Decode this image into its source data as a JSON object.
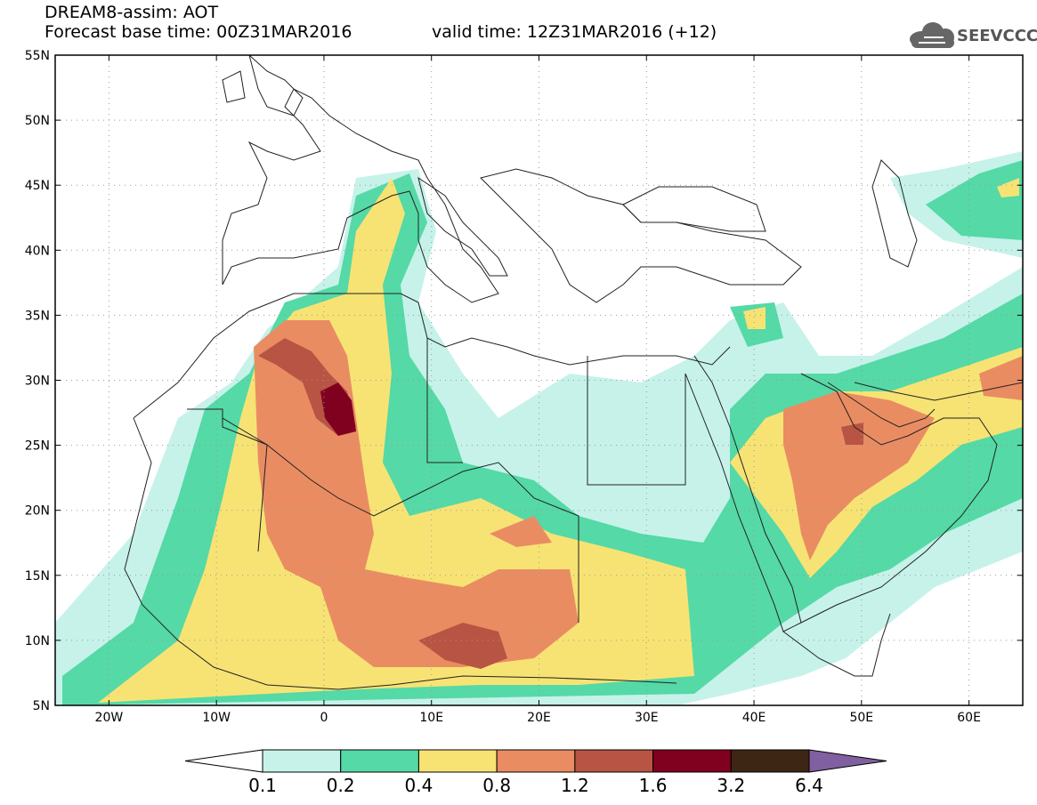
{
  "header": {
    "line1": "DREAM8-assim: AOT",
    "line2": "Forecast base time: 00Z31MAR2016",
    "line2b": "valid time: 12Z31MAR2016 (+12)"
  },
  "logo": {
    "text": "SEEVCCC",
    "icon": "cloud-icon"
  },
  "map": {
    "lat_labels": [
      "55N",
      "50N",
      "45N",
      "40N",
      "35N",
      "30N",
      "25N",
      "20N",
      "15N",
      "10N",
      "5N"
    ],
    "lon_labels": [
      "20W",
      "10W",
      "0",
      "10E",
      "20E",
      "30E",
      "40E",
      "50E",
      "60E"
    ],
    "lat_range": [
      5,
      55
    ],
    "lon_range": [
      -25,
      65
    ],
    "grid": true
  },
  "colorbar": {
    "labels": [
      "0.1",
      "0.2",
      "0.4",
      "0.8",
      "1.2",
      "1.6",
      "3.2",
      "6.4"
    ],
    "colors": [
      "#ffffff",
      "#c6f2ea",
      "#55d9a6",
      "#f7e374",
      "#ea8c62",
      "#b85443",
      "#800020",
      "#3e2614",
      "#8060a0"
    ]
  }
}
